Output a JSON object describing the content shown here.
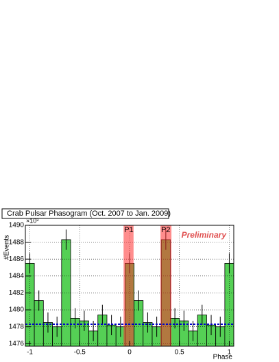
{
  "chart_data": {
    "type": "histogram",
    "title": "Crab Pulsar Phasogram (Oct. 2007 to Jan. 2009)",
    "xlabel": "Phase",
    "ylabel": "#Events",
    "y_exponent_label": "×10³",
    "annotation": "Preliminary",
    "annotation_color": "#e05050",
    "bins": [
      -1.045,
      -0.955,
      -0.864,
      -0.773,
      -0.682,
      -0.591,
      -0.5,
      -0.409,
      -0.318,
      -0.227,
      -0.136,
      -0.045,
      0.045,
      0.136,
      0.227,
      0.318,
      0.409,
      0.5,
      0.591,
      0.682,
      0.773,
      0.864,
      0.955,
      1.045
    ],
    "values": [
      1485.5,
      1481.1,
      1478.5,
      1478.0,
      1488.3,
      1479.0,
      1478.7,
      1477.5,
      1479.4,
      1478.2,
      1478.0,
      1485.5,
      1481.1,
      1478.5,
      1478.0,
      1488.3,
      1479.0,
      1478.7,
      1477.5,
      1479.4,
      1478.2,
      1478.0,
      1485.5
    ],
    "errors": [
      1.2,
      1.2,
      1.2,
      1.2,
      1.2,
      1.2,
      1.2,
      1.2,
      1.2,
      1.2,
      1.2,
      1.2,
      1.2,
      1.2,
      1.2,
      1.2,
      1.2,
      1.2,
      1.2,
      1.2,
      1.2,
      1.2,
      1.2
    ],
    "color": "#55d055",
    "regions": [
      {
        "label": "P1",
        "range": [
          -0.06,
          0.04
        ]
      },
      {
        "label": "P2",
        "range": [
          0.31,
          0.42
        ]
      }
    ],
    "region_color": "#ff3030",
    "reference_line": {
      "value": 1478.3,
      "color": "#0000cc"
    },
    "xlim": [
      -1.045,
      1.045
    ],
    "ylim": [
      1475.7,
      1490
    ],
    "xticks": [
      -1,
      -0.5,
      0,
      0.5,
      1
    ],
    "yticks": [
      1476,
      1478,
      1480,
      1482,
      1484,
      1486,
      1488,
      1490
    ],
    "grid": true
  }
}
